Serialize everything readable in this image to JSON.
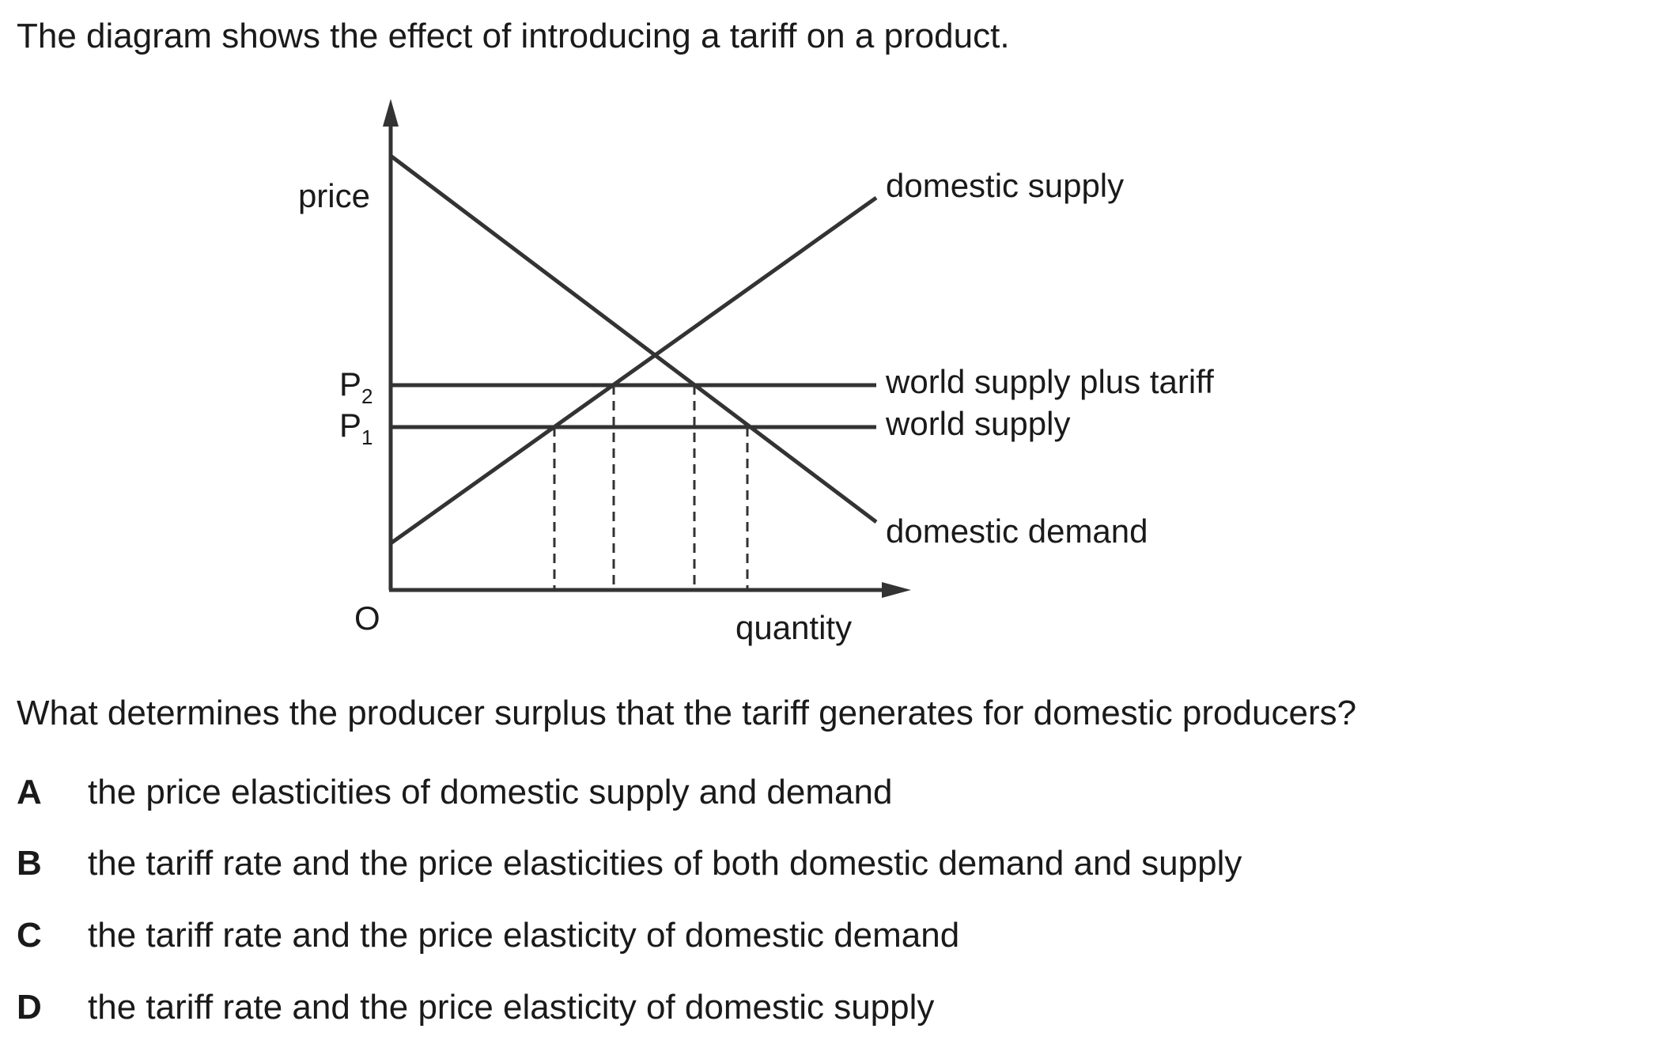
{
  "intro": "The diagram shows the effect of introducing a tariff on a product.",
  "diagram": {
    "y_axis_label": "price",
    "x_axis_label": "quantity",
    "origin_label": "O",
    "p2_label": {
      "main": "P",
      "sub": "2"
    },
    "p1_label": {
      "main": "P",
      "sub": "1"
    },
    "lines": {
      "domestic_supply": "domestic supply",
      "world_supply_plus_tariff": "world supply plus tariff",
      "world_supply": "world supply",
      "domestic_demand": "domestic demand"
    }
  },
  "question": "What determines the producer surplus that the tariff generates for domestic producers?",
  "options": [
    {
      "letter": "A",
      "text": "the price elasticities of domestic supply and demand"
    },
    {
      "letter": "B",
      "text": "the tariff rate and the price elasticities of both domestic demand and supply"
    },
    {
      "letter": "C",
      "text": "the tariff rate and the price elasticity of domestic demand"
    },
    {
      "letter": "D",
      "text": "the tariff rate and the price elasticity of domestic supply"
    }
  ]
}
